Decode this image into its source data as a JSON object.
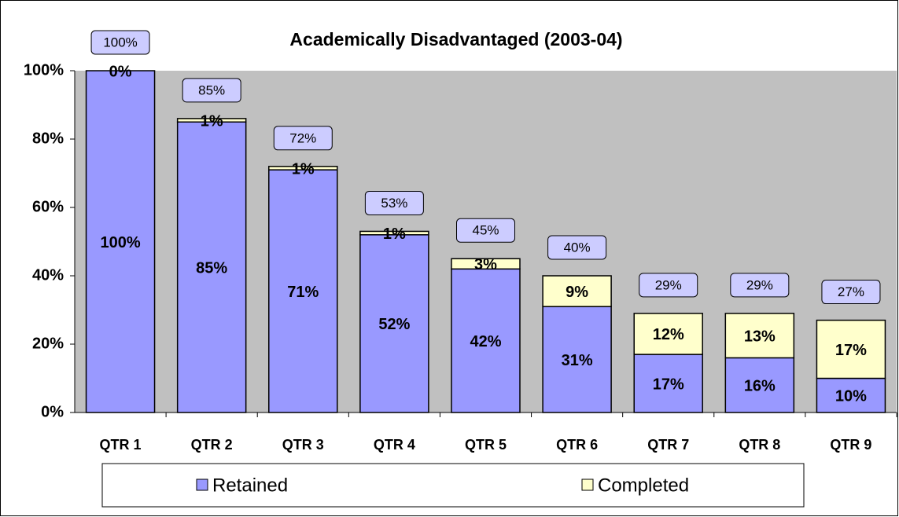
{
  "chart_data": {
    "type": "stacked_bar",
    "title": "Academically Disadvantaged (2003-04)",
    "categories": [
      "QTR 1",
      "QTR 2",
      "QTR 3",
      "QTR 4",
      "QTR 5",
      "QTR 6",
      "QTR 7",
      "QTR 8",
      "QTR 9"
    ],
    "series": [
      {
        "name": "Retained",
        "color": "#9999ff",
        "values": [
          100,
          85,
          71,
          52,
          42,
          31,
          17,
          16,
          10
        ],
        "value_labels": [
          "100%",
          "85%",
          "71%",
          "52%",
          "42%",
          "31%",
          "17%",
          "16%",
          "10%"
        ]
      },
      {
        "name": "Completed",
        "color": "#ffffcc",
        "values": [
          0,
          1,
          1,
          1,
          3,
          9,
          12,
          13,
          17
        ],
        "value_labels": [
          "0%",
          "1%",
          "1%",
          "1%",
          "3%",
          "9%",
          "12%",
          "13%",
          "17%"
        ]
      }
    ],
    "totals": [
      100,
      85,
      72,
      53,
      45,
      40,
      29,
      29,
      27
    ],
    "totals_labels": [
      "100%",
      "85%",
      "72%",
      "53%",
      "45%",
      "40%",
      "29%",
      "29%",
      "27%"
    ],
    "ylim": [
      0,
      100
    ],
    "yticks": [
      {
        "value": 0,
        "label": "0%"
      },
      {
        "value": 20,
        "label": "20%"
      },
      {
        "value": 40,
        "label": "40%"
      },
      {
        "value": 60,
        "label": "60%"
      },
      {
        "value": 80,
        "label": "80%"
      },
      {
        "value": 100,
        "label": "100%"
      }
    ],
    "grid": false,
    "legend": "bottom"
  }
}
